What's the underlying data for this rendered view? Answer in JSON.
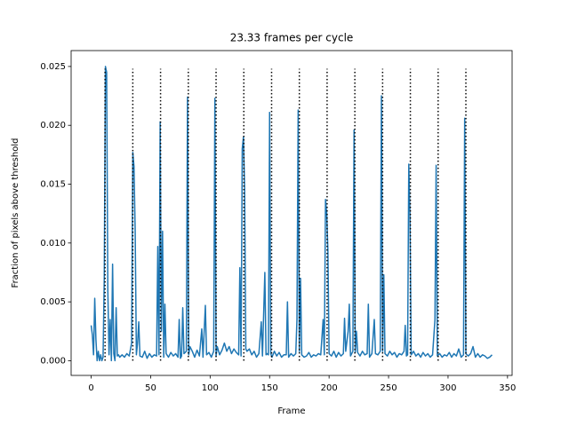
{
  "chart_data": {
    "type": "line",
    "title": "23.33 frames per cycle",
    "x_label": "Frame",
    "y_label": "Fraction of pixels above threshold",
    "series": [
      {
        "color": "#1f77b4",
        "x": [
          0,
          1,
          2,
          3,
          4,
          5,
          6,
          7,
          8,
          9,
          10,
          11,
          12,
          13,
          14,
          15,
          16,
          17,
          18,
          19,
          20,
          21,
          22,
          23,
          24,
          26,
          28,
          30,
          32,
          34,
          35,
          36,
          37,
          38,
          39,
          40,
          41,
          43,
          45,
          47,
          49,
          51,
          53,
          55,
          56,
          57,
          58,
          59,
          60,
          61,
          62,
          63,
          65,
          67,
          69,
          71,
          73,
          74,
          75,
          76,
          77,
          78,
          80,
          81,
          82,
          83,
          85,
          87,
          89,
          91,
          93,
          94,
          96,
          97,
          99,
          101,
          103,
          104,
          105,
          106,
          108,
          110,
          112,
          114,
          116,
          118,
          120,
          122,
          124,
          125,
          126,
          127,
          128,
          129,
          130,
          131,
          133,
          135,
          137,
          139,
          141,
          143,
          144,
          146,
          147,
          148,
          149,
          150,
          151,
          152,
          154,
          156,
          158,
          160,
          162,
          164,
          165,
          166,
          168,
          170,
          172,
          173,
          174,
          175,
          176,
          177,
          179,
          181,
          183,
          185,
          187,
          189,
          191,
          193,
          195,
          196,
          197,
          198,
          199,
          200,
          202,
          204,
          206,
          208,
          210,
          212,
          213,
          214,
          216,
          217,
          218,
          220,
          221,
          222,
          223,
          224,
          226,
          228,
          230,
          232,
          233,
          234,
          236,
          238,
          239,
          241,
          243,
          244,
          245,
          246,
          247,
          249,
          251,
          253,
          255,
          257,
          259,
          261,
          263,
          264,
          265,
          266,
          267,
          268,
          269,
          271,
          273,
          275,
          277,
          279,
          281,
          283,
          285,
          287,
          289,
          290,
          291,
          293,
          295,
          297,
          299,
          301,
          303,
          305,
          307,
          309,
          311,
          313,
          314,
          315,
          317,
          319,
          321,
          323,
          325,
          327,
          329,
          331,
          333,
          335,
          337
        ],
        "values": [
          0.003,
          0.0022,
          0.0005,
          0.0053,
          0.0018,
          0.0,
          0.0008,
          0.0,
          0.0005,
          0.0,
          0.0003,
          0.007,
          0.025,
          0.0245,
          0.006,
          0.0005,
          0.0035,
          0.0,
          0.0082,
          0.0006,
          0.0,
          0.0045,
          0.0004,
          0.0005,
          0.0003,
          0.0005,
          0.0003,
          0.0006,
          0.0004,
          0.0015,
          0.0177,
          0.0165,
          0.011,
          0.0005,
          0.0015,
          0.0033,
          0.0004,
          0.0003,
          0.0008,
          0.0002,
          0.0006,
          0.0003,
          0.0005,
          0.0004,
          0.0097,
          0.0005,
          0.0203,
          0.0025,
          0.011,
          0.0003,
          0.0048,
          0.0006,
          0.0003,
          0.0007,
          0.0004,
          0.0006,
          0.0003,
          0.0035,
          0.0002,
          0.0004,
          0.0045,
          0.0006,
          0.0008,
          0.0224,
          0.0005,
          0.0012,
          0.0008,
          0.0003,
          0.0009,
          0.0004,
          0.0027,
          0.0003,
          0.0047,
          0.0005,
          0.0007,
          0.0003,
          0.0008,
          0.0223,
          0.0004,
          0.0012,
          0.0005,
          0.0009,
          0.0015,
          0.0008,
          0.0012,
          0.0006,
          0.001,
          0.0007,
          0.0005,
          0.0079,
          0.0004,
          0.018,
          0.019,
          0.0146,
          0.001,
          0.0008,
          0.001,
          0.0005,
          0.0008,
          0.0003,
          0.0006,
          0.0033,
          0.0004,
          0.0075,
          0.0005,
          0.0006,
          0.0005,
          0.0211,
          0.0006,
          0.0003,
          0.0008,
          0.0004,
          0.0007,
          0.0003,
          0.0005,
          0.0005,
          0.005,
          0.0003,
          0.0006,
          0.0004,
          0.0006,
          0.0035,
          0.0213,
          0.0008,
          0.007,
          0.0005,
          0.0003,
          0.0004,
          0.0007,
          0.0003,
          0.0005,
          0.0004,
          0.0006,
          0.0005,
          0.0035,
          0.0005,
          0.0137,
          0.0125,
          0.0094,
          0.0006,
          0.0004,
          0.0008,
          0.0003,
          0.0007,
          0.0004,
          0.0006,
          0.0036,
          0.0008,
          0.0025,
          0.0048,
          0.0004,
          0.0008,
          0.0196,
          0.0007,
          0.0025,
          0.0007,
          0.0004,
          0.0008,
          0.0005,
          0.0006,
          0.0048,
          0.0003,
          0.0006,
          0.0035,
          0.0006,
          0.0005,
          0.0008,
          0.0225,
          0.0008,
          0.0073,
          0.0006,
          0.0004,
          0.0008,
          0.0005,
          0.0007,
          0.0003,
          0.0006,
          0.0005,
          0.0008,
          0.003,
          0.0004,
          0.0005,
          0.0167,
          0.0125,
          0.0005,
          0.0008,
          0.0004,
          0.0006,
          0.0003,
          0.0007,
          0.0004,
          0.0006,
          0.0003,
          0.0005,
          0.0035,
          0.0166,
          0.0004,
          0.0006,
          0.0003,
          0.0005,
          0.0004,
          0.0007,
          0.0003,
          0.0006,
          0.0004,
          0.001,
          0.0003,
          0.0005,
          0.0206,
          0.0006,
          0.0004,
          0.0006,
          0.0012,
          0.0003,
          0.0006,
          0.0003,
          0.0005,
          0.0004,
          0.0002,
          0.0003,
          0.0005
        ]
      }
    ],
    "vlines": {
      "x": [
        11.67,
        35,
        58.33,
        81.67,
        105,
        128.33,
        151.67,
        175,
        198.33,
        221.67,
        245,
        268.33,
        291.67,
        315
      ],
      "ymin": 0,
      "ymax": 0.0248,
      "color": "#000000"
    },
    "xlim": [
      -16.85,
      353.85
    ],
    "xticks": [
      0,
      50,
      100,
      150,
      200,
      250,
      300,
      350
    ],
    "ylim": [
      -0.00125,
      0.02635
    ],
    "yticks": [
      {
        "value": 0,
        "label": "0.000"
      },
      {
        "value": 0.005,
        "label": "0.005"
      },
      {
        "value": 0.01,
        "label": "0.010"
      },
      {
        "value": 0.015,
        "label": "0.015"
      },
      {
        "value": 0.02,
        "label": "0.020"
      },
      {
        "value": 0.025,
        "label": "0.025"
      }
    ]
  }
}
